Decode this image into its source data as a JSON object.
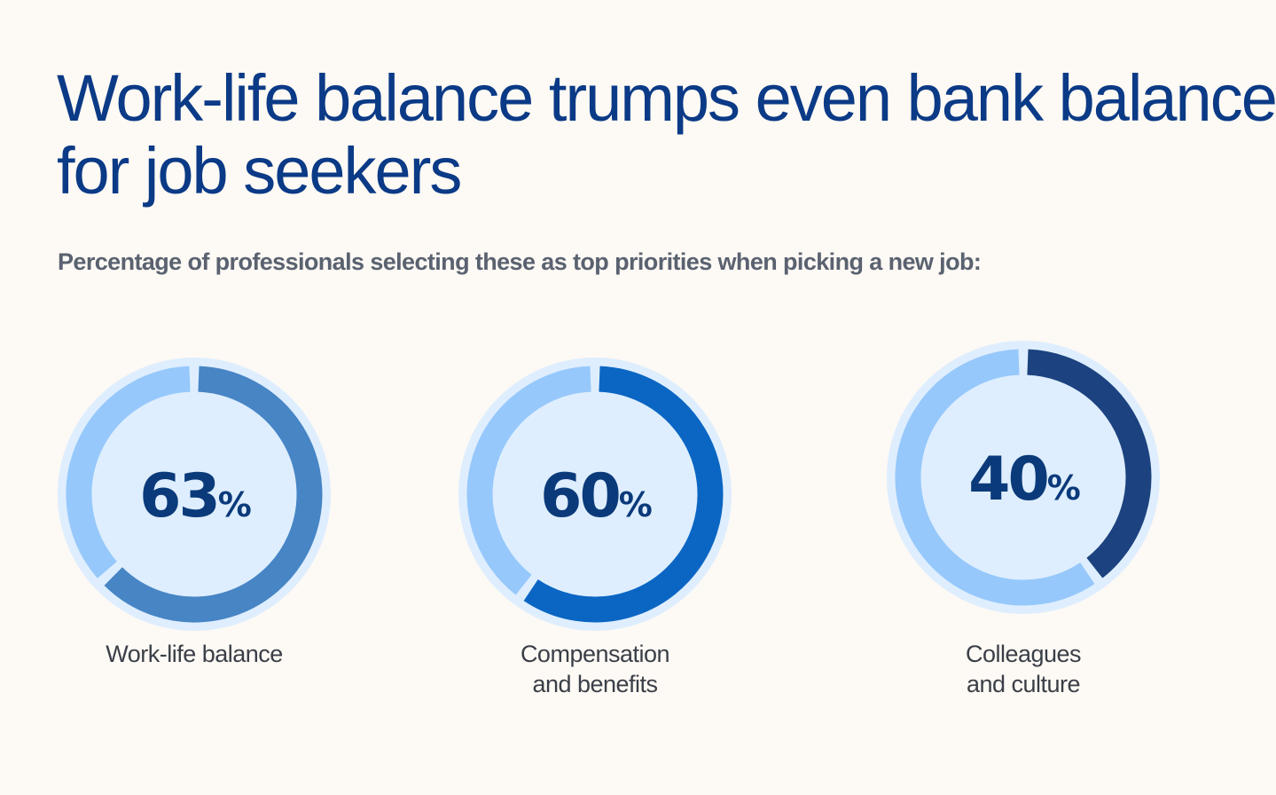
{
  "title": "Work-life balance trumps even bank balance for job seekers",
  "subtitle": "Percentage of professionals selecting these as top priorities when picking a new job:",
  "chart_data": {
    "type": "pie",
    "variant": "donut",
    "unit": "%",
    "categories": [
      "Work-life balance",
      "Compensation and benefits",
      "Colleagues and culture"
    ],
    "values": [
      63,
      60,
      40
    ],
    "label_lines": [
      [
        "Work-life balance"
      ],
      [
        "Compensation",
        "and benefits"
      ],
      [
        "Colleagues",
        "and culture"
      ]
    ],
    "colors": [
      "#4785c5",
      "#0b66c3",
      "#1c427f"
    ],
    "remainder_color": "#96c8fb",
    "disc_color": "#deeefe"
  },
  "background": "#fdf9f4"
}
